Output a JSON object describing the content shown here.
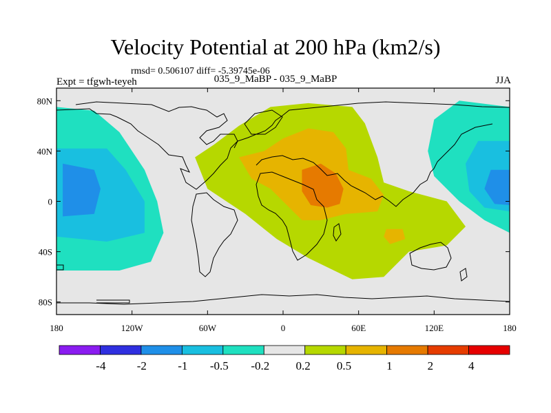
{
  "chart_data": {
    "type": "heatmap",
    "title": "Velocity Potential at 200 hPa (km2/s)",
    "stats": "rmsd= 0.506107 diff= -5.39745e-06",
    "left_label": "Expt = tfgwh-teyeh",
    "center_label": "035_9_MaBP - 035_9_MaBP",
    "right_label": "JJA",
    "x_ticks": [
      "180",
      "120W",
      "60W",
      "0",
      "60E",
      "120E",
      "180"
    ],
    "x_tick_values": [
      -180,
      -120,
      -60,
      0,
      60,
      120,
      180
    ],
    "y_ticks": [
      "80N",
      "40N",
      "0",
      "40S",
      "80S"
    ],
    "y_tick_values": [
      80,
      40,
      0,
      -40,
      -80
    ],
    "xlim": [
      -180,
      180
    ],
    "ylim": [
      -90,
      90
    ],
    "colorbar": {
      "levels": [
        "-4",
        "-2",
        "-1",
        "-0.5",
        "-0.2",
        "0.2",
        "0.5",
        "1",
        "2",
        "4"
      ],
      "colors": [
        "#8a1cf0",
        "#2f2fe0",
        "#1f8fe8",
        "#19bfe0",
        "#1fe0c0",
        "#e6e6e6",
        "#b6d800",
        "#e6b400",
        "#e67a00",
        "#e63c00",
        "#e60000"
      ]
    },
    "regions": [
      {
        "level_bin": "-0.5 to -0.2",
        "color_index": 4,
        "polygons": [
          [
            [
              -180,
              75
            ],
            [
              -150,
              72
            ],
            [
              -130,
              55
            ],
            [
              -120,
              40
            ],
            [
              -110,
              25
            ],
            [
              -100,
              0
            ],
            [
              -95,
              -25
            ],
            [
              -105,
              -48
            ],
            [
              -130,
              -55
            ],
            [
              -180,
              -55
            ]
          ],
          [
            [
              180,
              75
            ],
            [
              140,
              80
            ],
            [
              120,
              65
            ],
            [
              115,
              40
            ],
            [
              120,
              20
            ],
            [
              140,
              0
            ],
            [
              160,
              -15
            ],
            [
              180,
              -25
            ]
          ]
        ]
      },
      {
        "level_bin": "-1 to -0.5",
        "color_index": 3,
        "polygons": [
          [
            [
              -180,
              42
            ],
            [
              -140,
              42
            ],
            [
              -125,
              25
            ],
            [
              -110,
              0
            ],
            [
              -110,
              -25
            ],
            [
              -140,
              -32
            ],
            [
              -180,
              -28
            ]
          ],
          [
            [
              180,
              48
            ],
            [
              155,
              48
            ],
            [
              145,
              30
            ],
            [
              148,
              8
            ],
            [
              160,
              -5
            ],
            [
              180,
              -8
            ]
          ]
        ]
      },
      {
        "level_bin": "-2 to -1",
        "color_index": 2,
        "polygons": [
          [
            [
              -175,
              30
            ],
            [
              -150,
              25
            ],
            [
              -145,
              10
            ],
            [
              -150,
              -10
            ],
            [
              -175,
              -12
            ]
          ],
          [
            [
              180,
              25
            ],
            [
              165,
              25
            ],
            [
              160,
              10
            ],
            [
              168,
              -2
            ],
            [
              180,
              -3
            ]
          ]
        ]
      },
      {
        "level_bin": "0.2 to 0.5",
        "color_index": 6,
        "polygons": [
          [
            [
              -55,
              45
            ],
            [
              -35,
              60
            ],
            [
              -10,
              75
            ],
            [
              20,
              78
            ],
            [
              55,
              75
            ],
            [
              65,
              62
            ],
            [
              75,
              35
            ],
            [
              80,
              15
            ],
            [
              100,
              8
            ],
            [
              130,
              0
            ],
            [
              145,
              -20
            ],
            [
              130,
              -35
            ],
            [
              100,
              -40
            ],
            [
              80,
              -60
            ],
            [
              55,
              -62
            ],
            [
              20,
              -45
            ],
            [
              -5,
              -30
            ],
            [
              -30,
              -10
            ],
            [
              -60,
              10
            ],
            [
              -70,
              35
            ]
          ]
        ]
      },
      {
        "level_bin": "0.5 to 1",
        "color_index": 7,
        "polygons": [
          [
            [
              -35,
              35
            ],
            [
              -15,
              40
            ],
            [
              0,
              50
            ],
            [
              20,
              58
            ],
            [
              40,
              55
            ],
            [
              50,
              42
            ],
            [
              52,
              25
            ],
            [
              70,
              18
            ],
            [
              80,
              5
            ],
            [
              75,
              -8
            ],
            [
              50,
              -10
            ],
            [
              30,
              -15
            ],
            [
              15,
              -15
            ],
            [
              5,
              -5
            ],
            [
              -10,
              10
            ],
            [
              -25,
              18
            ]
          ],
          [
            [
              82,
              -22
            ],
            [
              95,
              -22
            ],
            [
              97,
              -30
            ],
            [
              85,
              -34
            ],
            [
              80,
              -28
            ]
          ]
        ]
      },
      {
        "level_bin": "1 to 2",
        "color_index": 8,
        "polygons": [
          [
            [
              15,
              25
            ],
            [
              30,
              30
            ],
            [
              42,
              22
            ],
            [
              48,
              10
            ],
            [
              45,
              -2
            ],
            [
              35,
              -5
            ],
            [
              22,
              -3
            ],
            [
              15,
              8
            ]
          ]
        ]
      }
    ]
  }
}
